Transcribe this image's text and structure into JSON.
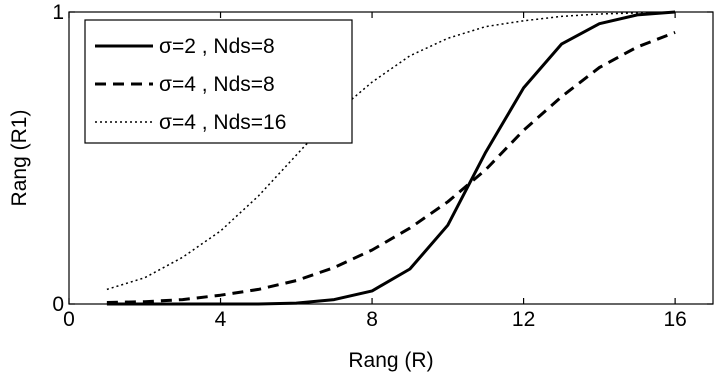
{
  "chart_data": {
    "type": "line",
    "title": "",
    "xlabel": "Rang (R)",
    "ylabel": "Rang (R1)",
    "xlim": [
      0,
      17
    ],
    "ylim": [
      0,
      1
    ],
    "xticks": [
      0,
      4,
      8,
      12,
      16
    ],
    "xtick_labels": [
      "0",
      "4",
      "8",
      "12",
      "16"
    ],
    "yticks": [
      0,
      1
    ],
    "ytick_labels": [
      "0",
      "1"
    ],
    "grid": false,
    "legend_position": "top-left",
    "x": [
      1,
      2,
      3,
      4,
      5,
      6,
      7,
      8,
      9,
      10,
      11,
      12,
      13,
      14,
      15,
      16
    ],
    "series": [
      {
        "name": "σ=2 , Nds=8",
        "style": "solid",
        "color": "#000000",
        "values": [
          0.0,
          0.0,
          0.0,
          0.0,
          0.0,
          0.003,
          0.015,
          0.045,
          0.12,
          0.27,
          0.52,
          0.74,
          0.89,
          0.96,
          0.99,
          1.0
        ]
      },
      {
        "name": "σ=4 , Nds=8",
        "style": "dashed",
        "color": "#000000",
        "values": [
          0.005,
          0.008,
          0.015,
          0.03,
          0.05,
          0.08,
          0.125,
          0.185,
          0.26,
          0.35,
          0.46,
          0.595,
          0.71,
          0.81,
          0.88,
          0.93
        ]
      },
      {
        "name": "σ=4 , Nds=16",
        "style": "dotted",
        "color": "#000000",
        "values": [
          0.05,
          0.09,
          0.16,
          0.25,
          0.37,
          0.51,
          0.65,
          0.76,
          0.85,
          0.91,
          0.95,
          0.97,
          0.985,
          0.993,
          0.997,
          1.0
        ]
      }
    ]
  }
}
